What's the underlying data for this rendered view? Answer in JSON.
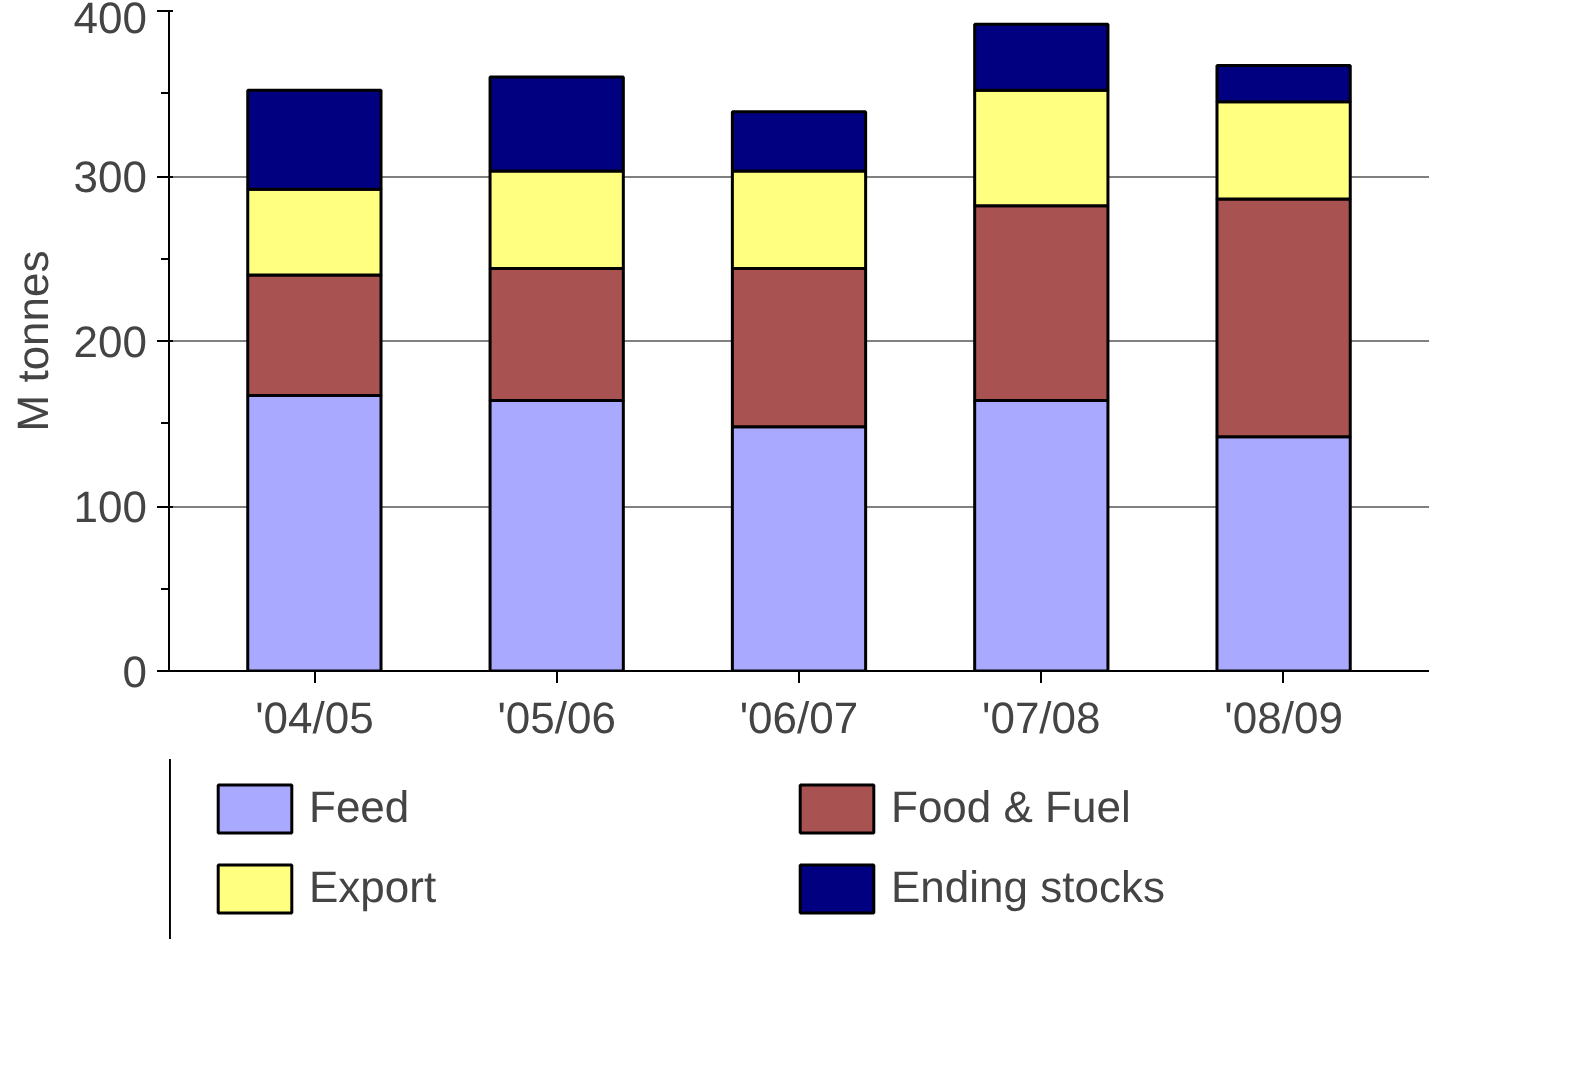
{
  "chart_data": {
    "type": "bar",
    "stacked": true,
    "ylabel": "M tonnes",
    "categories": [
      "'04/05",
      "'05/06",
      "'06/07",
      "'07/08",
      "'08/09"
    ],
    "series": [
      {
        "name": "Feed",
        "color": "#a9a9ff",
        "values": [
          167,
          164,
          148,
          164,
          142
        ]
      },
      {
        "name": "Food & Fuel",
        "color": "#a95252",
        "values": [
          73,
          80,
          96,
          118,
          144
        ]
      },
      {
        "name": "Export",
        "color": "#ffff80",
        "values": [
          52,
          59,
          59,
          70,
          59
        ]
      },
      {
        "name": "Ending stocks",
        "color": "#000080",
        "values": [
          60,
          57,
          36,
          40,
          22
        ]
      }
    ],
    "ylim": [
      0,
      400
    ],
    "yticks": [
      0,
      100,
      200,
      300,
      400
    ],
    "grid": "y",
    "legend": "bottom"
  }
}
